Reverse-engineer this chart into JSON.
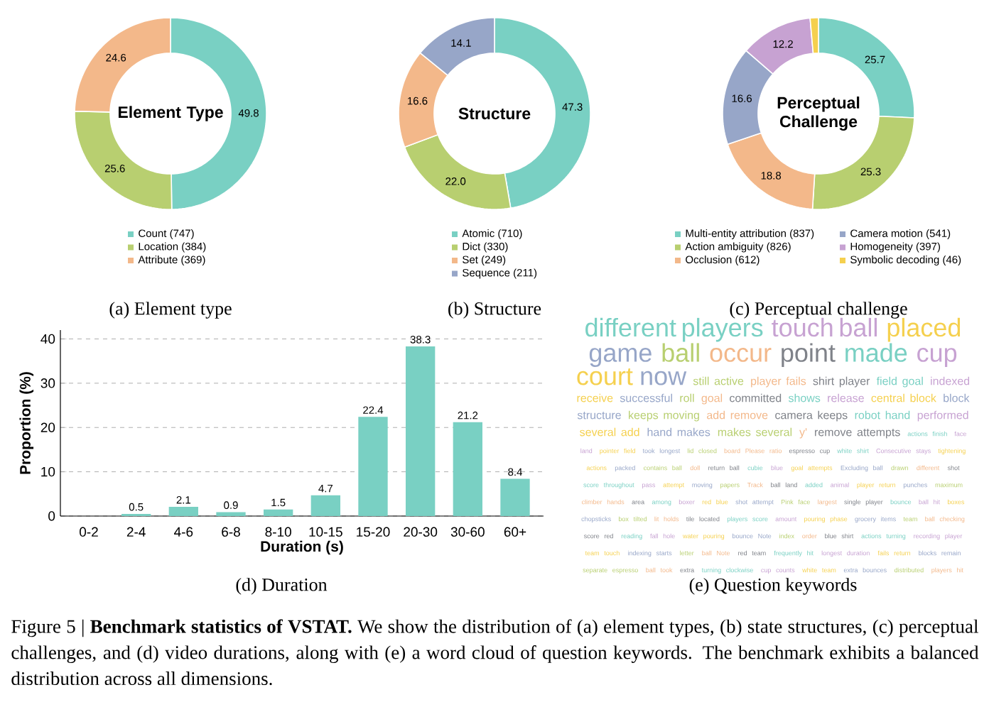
{
  "chart_data": [
    {
      "type": "donut",
      "title": "(a) Element type",
      "subtitle": "Element Type",
      "categories": [
        "Count (747)",
        "Location (384)",
        "Attribute (369)"
      ],
      "values": [
        49.8,
        25.6,
        24.6
      ],
      "colors": [
        "#79d0c3",
        "#b8cf70",
        "#f3b88a"
      ],
      "data_labels": true,
      "legend": "bottom",
      "annotations": [
        "Figure 5 | **Benchmark statistics of VSTAT.** We show the distribution of (a) element types, (b) state structures, (c) perceptual challenges, and (d) video durations, along with (e) a word cloud of question keywords. The benchmark exhibits a balanced distribution across all dimensions."
      ]
    },
    {
      "type": "donut",
      "title": "(b) Structure",
      "subtitle": "Structure",
      "categories": [
        "Atomic (710)",
        "Dict (330)",
        "Set (249)",
        "Sequence (211)"
      ],
      "values": [
        47.3,
        22.0,
        16.6,
        14.1
      ],
      "value_labels": [
        "47.3",
        "22.0",
        "16.6",
        "14.1"
      ],
      "colors": [
        "#79d0c3",
        "#b8cf70",
        "#f3b88a",
        "#97a6c8"
      ],
      "legend": "bottom"
    },
    {
      "type": "donut",
      "title": "(c) Perceptual challenge",
      "subtitle": "Perceptual Challenge",
      "categories": [
        "Multi-entity attribution (837)",
        "Action ambiguity (826)",
        "Occlusion (612)",
        "Camera motion (541)",
        "Homogeneity (397)",
        "Symbolic decoding (46)"
      ],
      "values": [
        25.7,
        25.3,
        18.8,
        16.6,
        12.2,
        1.4
      ],
      "value_labels": [
        "25.7",
        "25.3",
        "18.8",
        "16.6",
        "12.2",
        null
      ],
      "colors": [
        "#79d0c3",
        "#b8cf70",
        "#f3b88a",
        "#97a6c8",
        "#c7a2d2",
        "#f5d04e"
      ],
      "legend": "bottom"
    },
    {
      "type": "bar",
      "title": "(d) Duration",
      "xlabel": "Duration (s)",
      "ylabel": "Proportion (%)",
      "categories": [
        "0-2",
        "2-4",
        "4-6",
        "6-8",
        "8-10",
        "10-15",
        "15-20",
        "20-30",
        "30-60",
        "60+"
      ],
      "values": [
        0,
        0.5,
        2.1,
        0.9,
        1.5,
        4.7,
        22.4,
        38.3,
        21.2,
        8.4
      ],
      "value_labels": [
        null,
        "0.5",
        "2.1",
        "0.9",
        "1.5",
        "4.7",
        "22.4",
        "38.3",
        "21.2",
        "8.4"
      ],
      "color": "#79d0c3",
      "ylim": [
        0,
        42
      ],
      "yticks": [
        0,
        10,
        20,
        30,
        40
      ],
      "grid": "y"
    },
    {
      "type": "other",
      "title": "(e) Question keywords",
      "annotations": [
        "different players",
        "touch ball",
        "placed",
        "game",
        "ball",
        "occur",
        "point",
        "made",
        "cup",
        "court",
        "now",
        "still active",
        "player fails",
        "shirt player",
        "field goal",
        "indexed",
        "receive",
        "successful",
        "roll",
        "goal",
        "committed",
        "shows",
        "release",
        "central block",
        "block structure",
        "keeps moving",
        "add remove",
        "camera keeps",
        "robot hand",
        "performed",
        "several add",
        "hand makes",
        "makes several",
        "y'",
        "remove attempts",
        "actions finish",
        "face land",
        "pointer field",
        "took longest",
        "lid closed",
        "board Please ratio",
        "espresso cup",
        "white shirt",
        "Consecutive stays",
        "tightening actions",
        "packed",
        "contains ball",
        "doll",
        "return ball",
        "cubie",
        "blue",
        "goal attempts",
        "Excluding ball",
        "drawn",
        "different",
        "shot",
        "score throughout",
        "pass",
        "attempt",
        "moving",
        "papers",
        "Track",
        "ball land",
        "added",
        "animal",
        "player return",
        "punches",
        "maximum",
        "climber hands",
        "area",
        "among",
        "boxer",
        "red blue",
        "shot attempt",
        "Pink face",
        "largest",
        "single player",
        "bounce",
        "ball hit",
        "boxes",
        "chopsticks",
        "box tilted",
        "lit holds",
        "tile located",
        "players score",
        "amount",
        "pouring phase",
        "grocery items",
        "team",
        "ball checking",
        "score red",
        "reading",
        "fall hole",
        "water pouring",
        "bounce Note",
        "index",
        "order",
        "blue shirt",
        "actions turning",
        "recording player",
        "team touch",
        "indexing starts",
        "letter",
        "ball Note",
        "red team",
        "frequently hit",
        "longest duration",
        "fails return",
        "blocks remain",
        "separate espresso",
        "ball took",
        "extra",
        "turning clockwise",
        "cup counts",
        "white team",
        "extra bounces",
        "distributed",
        "players hit"
      ]
    }
  ]
}
